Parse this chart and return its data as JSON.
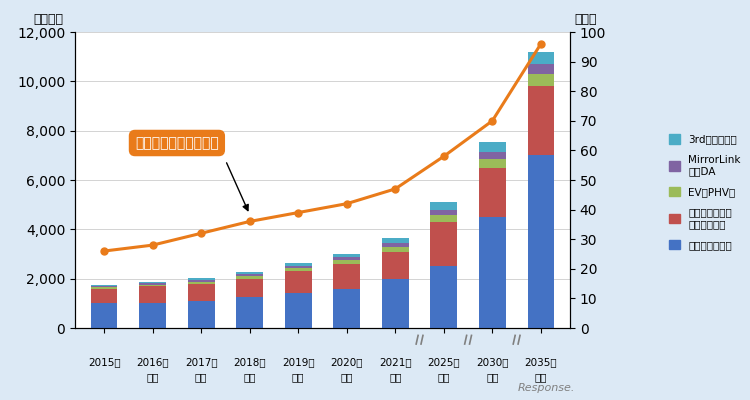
{
  "years": [
    "2015年",
    "2016年",
    "2017年",
    "2018年",
    "2019年",
    "2020年",
    "2021年",
    "2025年",
    "2030年",
    "2035年"
  ],
  "sublabels": [
    "",
    "見込",
    "予測",
    "予測",
    "予測",
    "予測",
    "予測",
    "予測",
    "予測",
    "予測"
  ],
  "embedded": [
    1000,
    1000,
    1100,
    1250,
    1400,
    1600,
    2000,
    2500,
    4500,
    7000
  ],
  "mobile": [
    600,
    700,
    700,
    750,
    900,
    1000,
    1100,
    1800,
    2000,
    2800
  ],
  "ev_phv": [
    50,
    60,
    80,
    100,
    120,
    150,
    200,
    300,
    350,
    500
  ],
  "mirrorlink": [
    50,
    60,
    70,
    80,
    100,
    120,
    150,
    200,
    300,
    400
  ],
  "third": [
    50,
    60,
    80,
    90,
    100,
    150,
    200,
    300,
    400,
    500
  ],
  "line_pct": [
    26,
    28,
    32,
    36,
    39,
    42,
    47,
    58,
    70,
    96
  ],
  "bar_colors": {
    "embedded": "#4472C4",
    "mobile": "#C0504D",
    "ev_phv": "#9BBB59",
    "mirrorlink": "#8064A2",
    "third": "#4BACC6"
  },
  "line_color": "#E97B1A",
  "bg_color": "#DCE9F5",
  "plot_bg": "#FFFFFF",
  "ylim_left": [
    0,
    12000
  ],
  "ylim_right": [
    0,
    100
  ],
  "ylabel_left": "（億円）",
  "ylabel_right": "（％）",
  "annotation_text": "コネクテッドカー比率",
  "legend_labels": [
    "3rdパーティー",
    "MirrorLink\n対応DA",
    "EV／PHV型",
    "モバイル連携／\nテザリング型",
    "エンベデッド型"
  ]
}
